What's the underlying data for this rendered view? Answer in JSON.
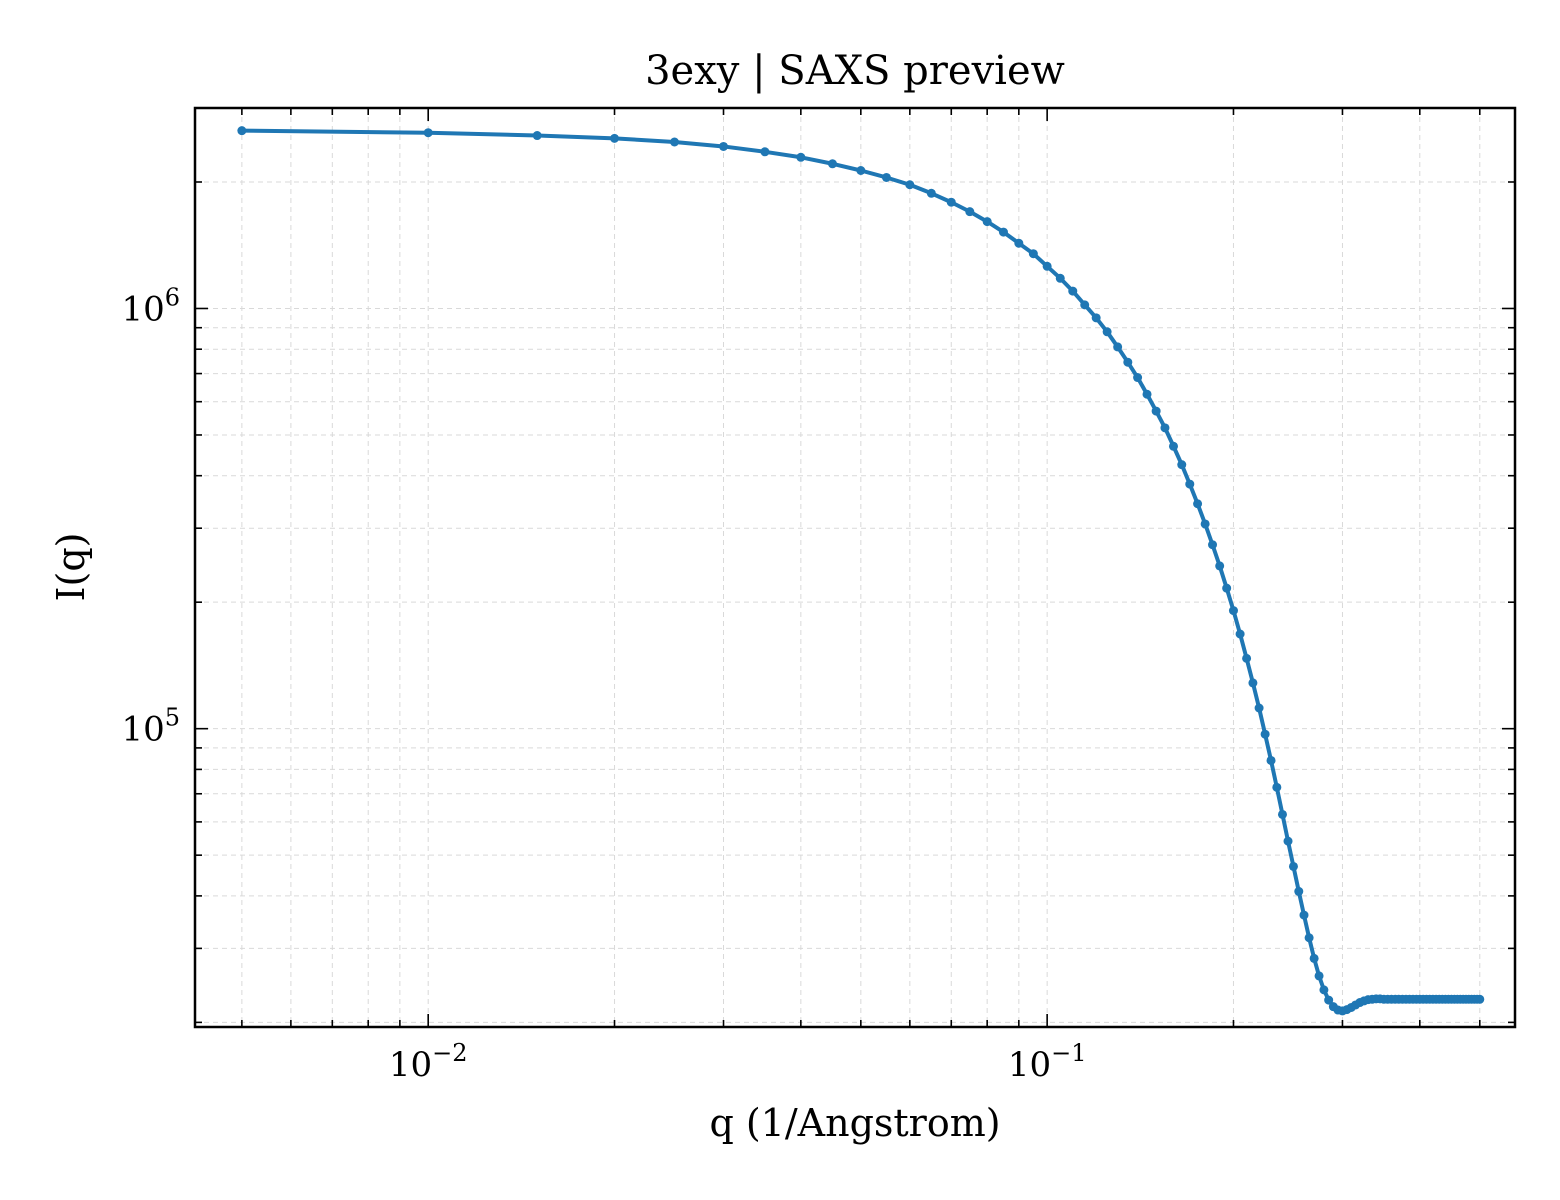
{
  "chart_data": {
    "type": "line",
    "title": "3exy | SAXS preview",
    "xlabel": "q (1/Angstrom)",
    "ylabel": "I(q)",
    "xscale": "log",
    "yscale": "log",
    "xlim": [
      0.0042,
      0.57
    ],
    "ylim": [
      19500,
      3000000
    ],
    "grid": true,
    "legend": "none",
    "series_color": "#1f77b4",
    "x_ticks": [
      {
        "base": "10",
        "exp": "−2",
        "value": 0.01
      },
      {
        "base": "10",
        "exp": "−1",
        "value": 0.1
      }
    ],
    "y_ticks": [
      {
        "base": "10",
        "exp": "5",
        "value": 100000
      },
      {
        "base": "10",
        "exp": "6",
        "value": 1000000
      }
    ],
    "series": [
      {
        "x": [
          0.005,
          0.01,
          0.015,
          0.02,
          0.025,
          0.03,
          0.035,
          0.04,
          0.045,
          0.05,
          0.055,
          0.06,
          0.065,
          0.07,
          0.075,
          0.08,
          0.085,
          0.09,
          0.095,
          0.1,
          0.105,
          0.11,
          0.115,
          0.12,
          0.125,
          0.13,
          0.135,
          0.14,
          0.145,
          0.15,
          0.155,
          0.16,
          0.165,
          0.17,
          0.175,
          0.18,
          0.185,
          0.19,
          0.195,
          0.2,
          0.205,
          0.21,
          0.215,
          0.22,
          0.225,
          0.23,
          0.235,
          0.24,
          0.245,
          0.25,
          0.255,
          0.26,
          0.265,
          0.27,
          0.275,
          0.28,
          0.285,
          0.29,
          0.295,
          0.3,
          0.305,
          0.31,
          0.315,
          0.32,
          0.325,
          0.33,
          0.335,
          0.34,
          0.345,
          0.35,
          0.355,
          0.36,
          0.365,
          0.37,
          0.375,
          0.38,
          0.385,
          0.39,
          0.395,
          0.4,
          0.405,
          0.41,
          0.415,
          0.42,
          0.425,
          0.43,
          0.435,
          0.44,
          0.445,
          0.45,
          0.455,
          0.46,
          0.465,
          0.47,
          0.475,
          0.48,
          0.485,
          0.49,
          0.495,
          0.5
        ],
        "y": [
          2650000,
          2620000,
          2580000,
          2540000,
          2490000,
          2430000,
          2360000,
          2290000,
          2210000,
          2130000,
          2050000,
          1970000,
          1880000,
          1790000,
          1700000,
          1610000,
          1520000,
          1430000,
          1350000,
          1260000,
          1180000,
          1100000,
          1020000,
          950000,
          880000,
          810000,
          745000,
          685000,
          625000,
          570000,
          520000,
          470000,
          425000,
          382000,
          343000,
          307000,
          274000,
          244000,
          216000,
          191000,
          168000,
          147000,
          128500,
          112000,
          97000,
          84000,
          72500,
          62500,
          54000,
          47000,
          41000,
          36000,
          31800,
          28400,
          25800,
          23900,
          22600,
          21800,
          21400,
          21300,
          21450,
          21700,
          22000,
          22300,
          22500,
          22650,
          22700,
          22750,
          22750,
          22700,
          22700,
          22700,
          22700,
          22700,
          22700,
          22700,
          22700,
          22700,
          22700,
          22700,
          22700,
          22700,
          22700,
          22700,
          22700,
          22700,
          22700,
          22700,
          22700,
          22700,
          22700,
          22700,
          22700,
          22700,
          22700,
          22700,
          22700,
          22700,
          22700,
          22700
        ]
      }
    ]
  }
}
